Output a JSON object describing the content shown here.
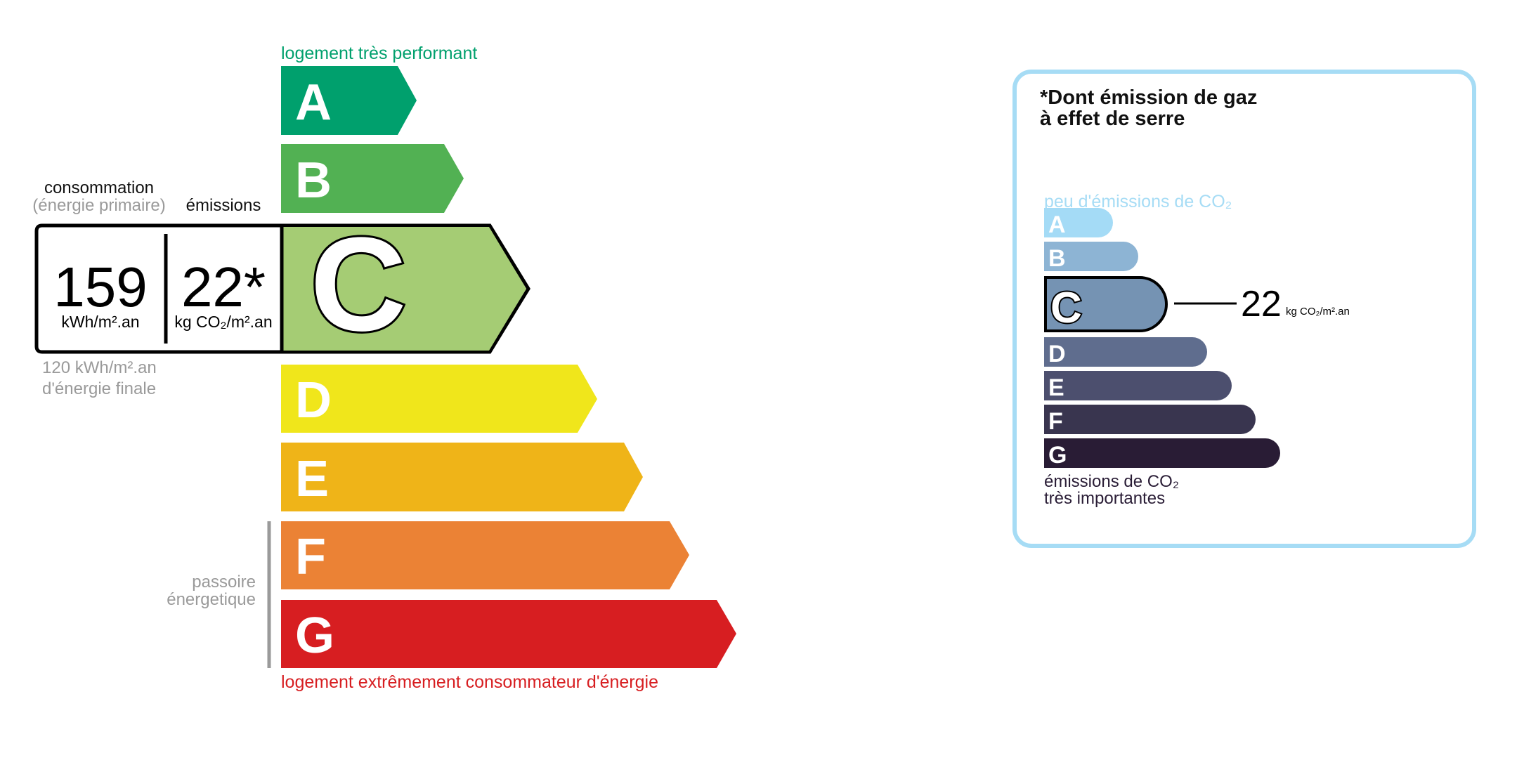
{
  "energy": {
    "top_label": "logement très performant",
    "bottom_label": "logement extrêmement consommateur d'énergie",
    "passoire_line1": "passoire",
    "passoire_line2": "énergetique",
    "consumption_header": "consommation",
    "consumption_subheader": "(énergie primaire)",
    "emissions_header": "émissions",
    "consumption_value": "159",
    "consumption_unit": "kWh/m².an",
    "emissions_value": "22*",
    "emissions_unit": "kg CO₂/m².an",
    "final_energy_line1": "120 kWh/m².an",
    "final_energy_line2": "d'énergie finale",
    "current_class": "C",
    "classes": [
      {
        "letter": "A",
        "color": "#00a06d"
      },
      {
        "letter": "B",
        "color": "#52b153"
      },
      {
        "letter": "C",
        "color": "#a5cc74"
      },
      {
        "letter": "D",
        "color": "#f0e61b"
      },
      {
        "letter": "E",
        "color": "#efb418"
      },
      {
        "letter": "F",
        "color": "#eb8235"
      },
      {
        "letter": "G",
        "color": "#d71e21"
      }
    ],
    "top_label_color": "#00a06d",
    "bottom_label_color": "#d71e21"
  },
  "ghg": {
    "title_line1": "*Dont émission de gaz",
    "title_line2": "à effet de serre",
    "top_label": "peu d'émissions de CO₂",
    "bottom_line1": "émissions de CO₂",
    "bottom_line2": "très importantes",
    "value": "22",
    "unit": "kg CO₂/m².an",
    "current_class": "C",
    "border_color": "#a6dcf5",
    "classes": [
      {
        "letter": "A",
        "color": "#a4dbf6"
      },
      {
        "letter": "B",
        "color": "#8db4d4"
      },
      {
        "letter": "C",
        "color": "#7593b3"
      },
      {
        "letter": "D",
        "color": "#5f6d8e"
      },
      {
        "letter": "E",
        "color": "#4c4f6e"
      },
      {
        "letter": "F",
        "color": "#39354f"
      },
      {
        "letter": "G",
        "color": "#291c35"
      }
    ]
  }
}
